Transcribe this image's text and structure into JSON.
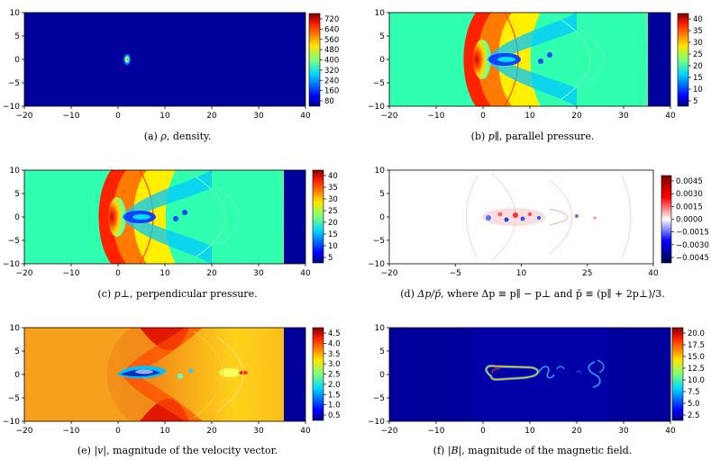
{
  "panels": [
    {
      "id": "a",
      "caption": {
        "label": "(a)",
        "symbol": "ρ",
        "text": ", density."
      },
      "x_ticks": [
        "−20",
        "−10",
        "0",
        "10",
        "20",
        "30",
        "40"
      ],
      "y_ticks": [
        "10",
        "5",
        "0",
        "−5",
        "−10"
      ],
      "colorbar_ticks": [
        "720",
        "640",
        "560",
        "480",
        "400",
        "320",
        "240",
        "160",
        "80"
      ]
    },
    {
      "id": "b",
      "caption": {
        "label": "(b)",
        "symbol": "p∥",
        "text": ", parallel pressure."
      },
      "x_ticks": [
        "−20",
        "−10",
        "0",
        "10",
        "20",
        "30",
        "40"
      ],
      "y_ticks": [
        "10",
        "5",
        "0",
        "−5",
        "−10"
      ],
      "colorbar_ticks": [
        "40",
        "35",
        "30",
        "25",
        "20",
        "15",
        "10",
        "5"
      ]
    },
    {
      "id": "c",
      "caption": {
        "label": "(c)",
        "symbol": "p⊥",
        "text": ", perpendicular pressure."
      },
      "x_ticks": [
        "−20",
        "−10",
        "0",
        "10",
        "20",
        "30",
        "40"
      ],
      "y_ticks": [
        "10",
        "5",
        "0",
        "−5",
        "−10"
      ],
      "colorbar_ticks": [
        "40",
        "35",
        "30",
        "25",
        "20",
        "15",
        "10",
        "5"
      ]
    },
    {
      "id": "d",
      "caption": {
        "label": "(d)",
        "symbol": "Δp/p̄",
        "text": ", where Δp ≡ p∥ − p⊥ and p̄ ≡ (p∥ + 2p⊥)/3."
      },
      "x_ticks": [
        "−20",
        "−5",
        "10",
        "25",
        "40"
      ],
      "y_ticks": [
        "10",
        "5",
        "0",
        "−5",
        "−10"
      ],
      "colorbar_ticks": [
        "0.0045",
        "0.0030",
        "0.0015",
        "0.0000",
        "−0.0015",
        "−0.0030",
        "−0.0045"
      ]
    },
    {
      "id": "e",
      "caption": {
        "label": "(e)",
        "symbol": "|v|",
        "text": ", magnitude of the velocity vector."
      },
      "x_ticks": [
        "−20",
        "−10",
        "0",
        "10",
        "20",
        "30",
        "40"
      ],
      "y_ticks": [
        "10",
        "5",
        "0",
        "−5",
        "−10"
      ],
      "colorbar_ticks": [
        "4.5",
        "4.0",
        "3.5",
        "3.0",
        "2.5",
        "2.0",
        "1.5",
        "1.0",
        "0.5"
      ]
    },
    {
      "id": "f",
      "caption": {
        "label": "(f)",
        "symbol": "|B|",
        "text": ", magnitude of the magnetic field."
      },
      "x_ticks": [
        "−20",
        "−10",
        "0",
        "10",
        "20",
        "30",
        "40"
      ],
      "y_ticks": [
        "10",
        "5",
        "0",
        "−5",
        "−10"
      ],
      "colorbar_ticks": [
        "20.0",
        "17.5",
        "15.0",
        "12.5",
        "10.0",
        "7.5",
        "5.0",
        "2.5"
      ]
    }
  ],
  "chart_data": [
    {
      "type": "heatmap",
      "x_range": [
        -20,
        40
      ],
      "y_range": [
        -10,
        10
      ],
      "colorbar_range": [
        0,
        760
      ],
      "colormap": "jet"
    },
    {
      "type": "heatmap",
      "x_range": [
        -20,
        40
      ],
      "y_range": [
        -10,
        10
      ],
      "colorbar_range": [
        2,
        41
      ],
      "colormap": "jet"
    },
    {
      "type": "heatmap",
      "x_range": [
        -20,
        40
      ],
      "y_range": [
        -10,
        10
      ],
      "colorbar_range": [
        2,
        41
      ],
      "colormap": "jet"
    },
    {
      "type": "heatmap",
      "x_range": [
        -20,
        40
      ],
      "y_range": [
        -10,
        10
      ],
      "colorbar_range": [
        -0.005,
        0.005
      ],
      "colormap": "seismic"
    },
    {
      "type": "heatmap",
      "x_range": [
        -20,
        40
      ],
      "y_range": [
        -10,
        10
      ],
      "colorbar_range": [
        0.1,
        4.9
      ],
      "colormap": "jet"
    },
    {
      "type": "heatmap",
      "x_range": [
        -20,
        40
      ],
      "y_range": [
        -10,
        10
      ],
      "colorbar_range": [
        1,
        20.5
      ],
      "colormap": "jet"
    }
  ]
}
